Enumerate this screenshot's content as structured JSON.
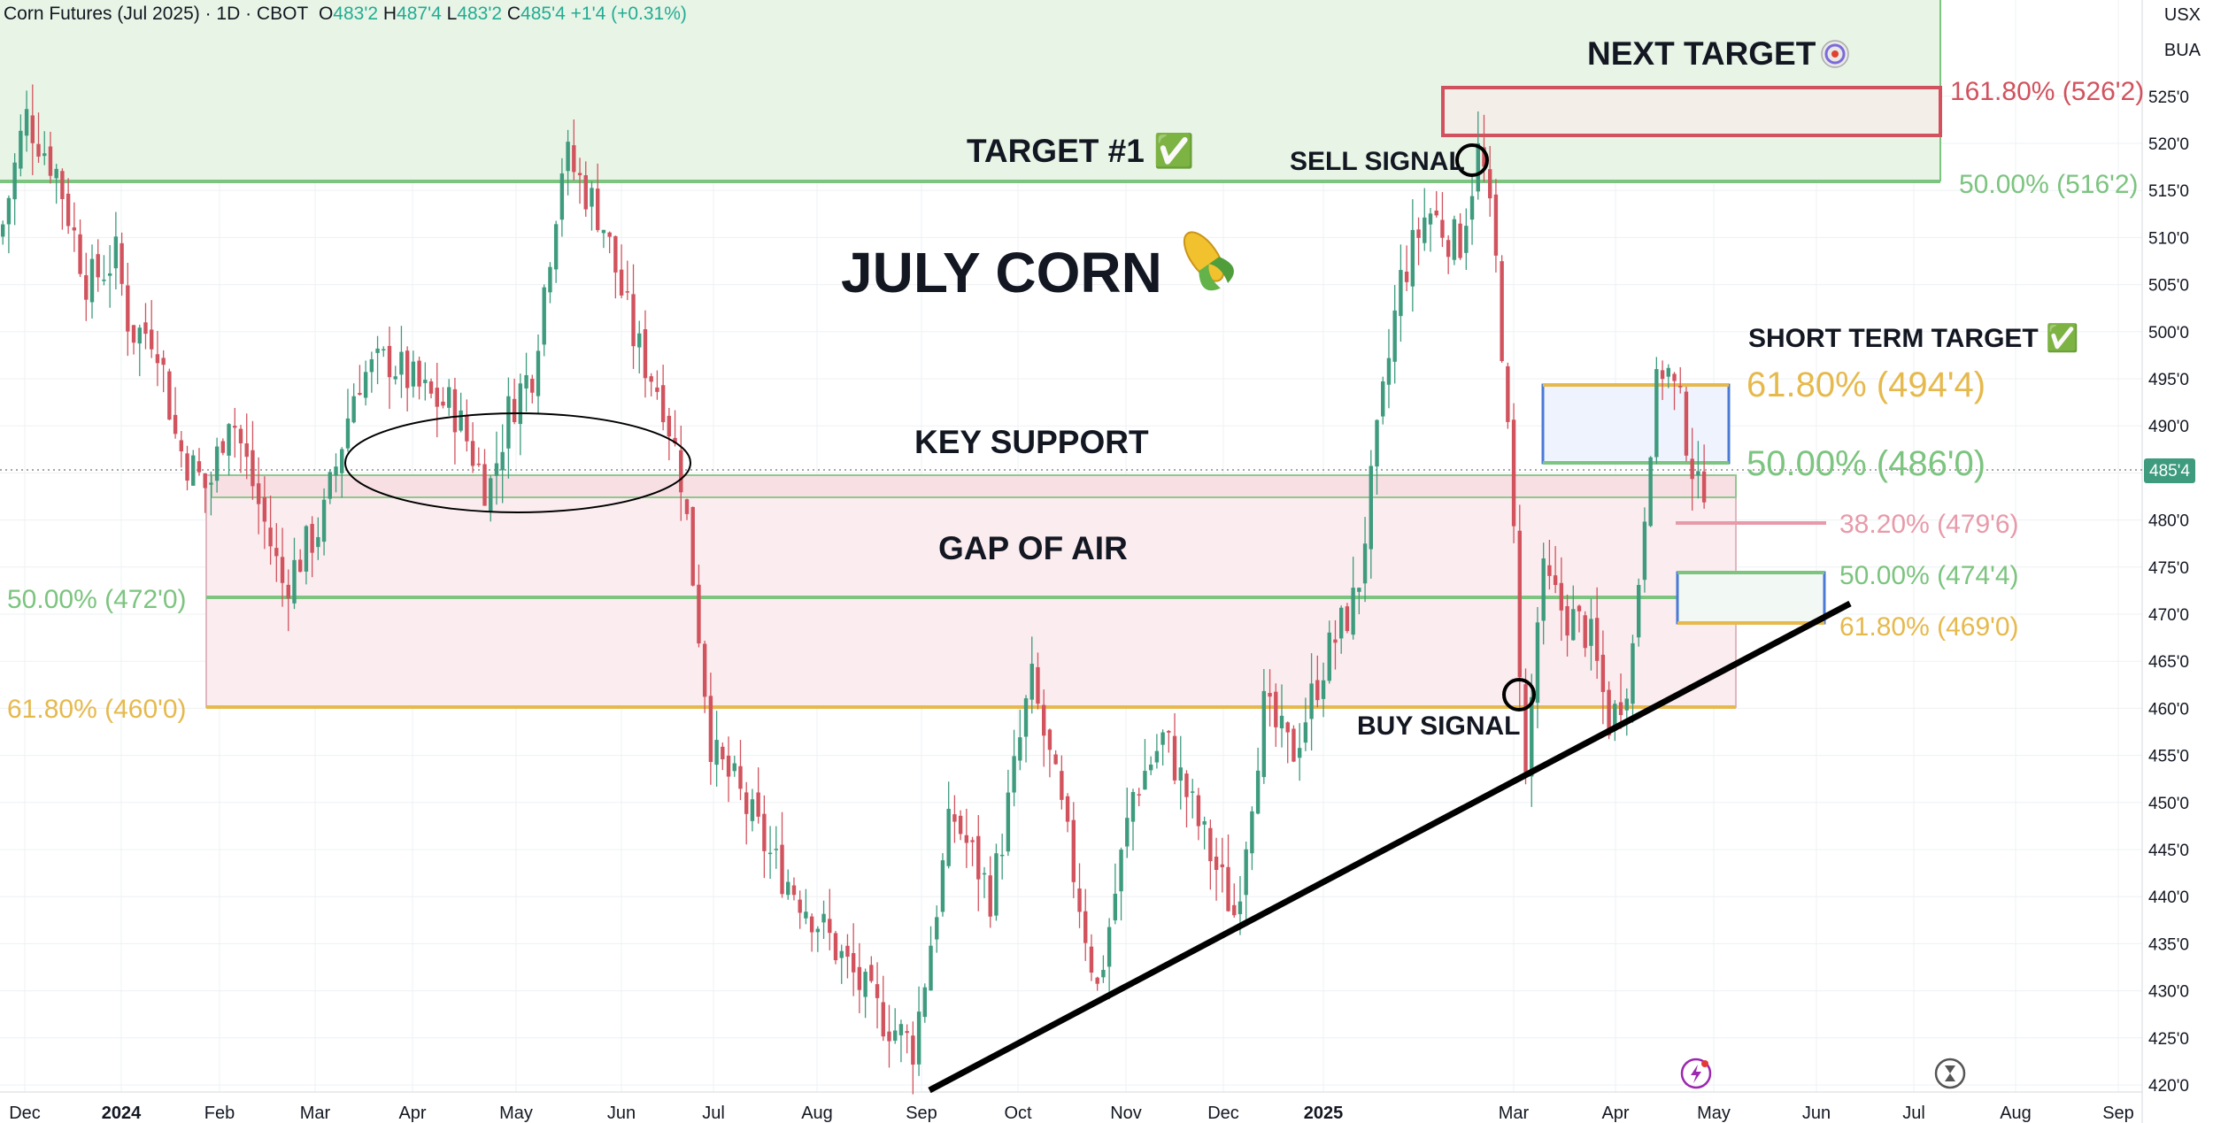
{
  "header": {
    "symbol": "Corn Futures (Jul 2025) · 1D · CBOT",
    "open_label": "O",
    "open": "483'2",
    "high_label": "H",
    "high": "487'4",
    "low_label": "L",
    "low": "483'2",
    "close_label": "C",
    "close": "485'4",
    "change": "+1'4 (+0.31%)"
  },
  "currency": "USX",
  "unit": "BUA",
  "chart_data": {
    "type": "candlestick",
    "title": "JULY CORN",
    "title_icon": "corn-emoji",
    "x_axis": {
      "ticks": [
        "Dec",
        "2024",
        "Feb",
        "Mar",
        "Apr",
        "May",
        "Jun",
        "Jul",
        "Aug",
        "Sep",
        "Oct",
        "Nov",
        "Dec",
        "2025",
        "Mar",
        "Apr",
        "May",
        "Jun",
        "Jul",
        "Aug",
        "Sep"
      ],
      "range": [
        "2023-12",
        "2025-09"
      ]
    },
    "y_axis": {
      "ticks": [
        "525'0",
        "520'0",
        "515'0",
        "510'0",
        "505'0",
        "500'0",
        "495'0",
        "490'0",
        "485'0",
        "480'0",
        "475'0",
        "470'0",
        "465'0",
        "460'0",
        "455'0",
        "450'0",
        "445'0",
        "440'0",
        "435'0",
        "430'0",
        "425'0",
        "420'0"
      ],
      "ylim": [
        419,
        530
      ]
    },
    "last_price": "485'4",
    "price_path": [
      [
        0,
        510
      ],
      [
        18,
        523
      ],
      [
        40,
        517
      ],
      [
        62,
        505
      ],
      [
        82,
        508
      ],
      [
        92,
        500
      ],
      [
        110,
        500
      ],
      [
        125,
        488
      ],
      [
        147,
        483
      ],
      [
        162,
        492
      ],
      [
        172,
        487
      ],
      [
        200,
        473
      ],
      [
        228,
        480
      ],
      [
        252,
        495
      ],
      [
        275,
        497
      ],
      [
        302,
        493
      ],
      [
        320,
        492
      ],
      [
        345,
        483
      ],
      [
        360,
        492
      ],
      [
        376,
        496
      ],
      [
        398,
        519
      ],
      [
        425,
        512
      ],
      [
        448,
        499
      ],
      [
        468,
        493
      ],
      [
        482,
        484
      ],
      [
        503,
        455
      ],
      [
        518,
        452
      ],
      [
        545,
        444
      ],
      [
        575,
        438
      ],
      [
        618,
        428
      ],
      [
        645,
        424
      ],
      [
        672,
        449
      ],
      [
        700,
        440
      ],
      [
        728,
        463
      ],
      [
        748,
        450
      ],
      [
        775,
        430
      ],
      [
        800,
        451
      ],
      [
        822,
        457
      ],
      [
        848,
        447
      ],
      [
        872,
        438
      ],
      [
        892,
        460
      ],
      [
        912,
        455
      ],
      [
        935,
        465
      ],
      [
        958,
        472
      ],
      [
        972,
        488
      ],
      [
        988,
        505
      ],
      [
        1008,
        513
      ],
      [
        1030,
        509
      ],
      [
        1045,
        520
      ],
      [
        1058,
        505
      ],
      [
        1070,
        475
      ],
      [
        1077,
        452
      ],
      [
        1088,
        474
      ],
      [
        1105,
        470
      ],
      [
        1122,
        468
      ],
      [
        1137,
        458
      ],
      [
        1152,
        465
      ],
      [
        1167,
        492
      ],
      [
        1175,
        497
      ],
      [
        1188,
        491
      ],
      [
        1200,
        482
      ],
      [
        1205,
        485.5
      ]
    ],
    "levels": [
      {
        "label": "161.80% (526'2)",
        "value": 526.25,
        "color": "#d1525e"
      },
      {
        "label": "50.00% (516'2)",
        "value": 516.25,
        "color": "#7cc47f"
      },
      {
        "label": "61.80% (494'4)",
        "value": 494.5,
        "color": "#e6b94c"
      },
      {
        "label": "50.00% (486'0)",
        "value": 486.0,
        "color": "#7cc47f"
      },
      {
        "label": "38.20% (479'6)",
        "value": 479.75,
        "color": "#e79aaa"
      },
      {
        "label": "50.00% (474'4)",
        "value": 474.5,
        "color": "#7cc47f"
      },
      {
        "label": "61.80% (469'0)",
        "value": 469.0,
        "color": "#e6b94c"
      },
      {
        "label": "50.00% (472'0)",
        "value": 472.0,
        "color": "#7cc47f"
      },
      {
        "label": "61.80% (460'0)",
        "value": 460.0,
        "color": "#e6b94c"
      }
    ],
    "annotations": {
      "next_target": "NEXT TARGET",
      "target1": "TARGET #1 ✅",
      "sell_signal": "SELL SIGNAL",
      "short_term_target": "SHORT TERM TARGET ✅",
      "key_support": "KEY SUPPORT",
      "gap_of_air": "GAP OF AIR",
      "buy_signal": "BUY SIGNAL"
    }
  },
  "colors": {
    "up": "#3e9b7e",
    "down": "#d1535e",
    "green_zone": "#e8f4e6",
    "pink_zone": "#fbecef",
    "blue_zone": "#eef3fd",
    "trendline": "#000000"
  }
}
